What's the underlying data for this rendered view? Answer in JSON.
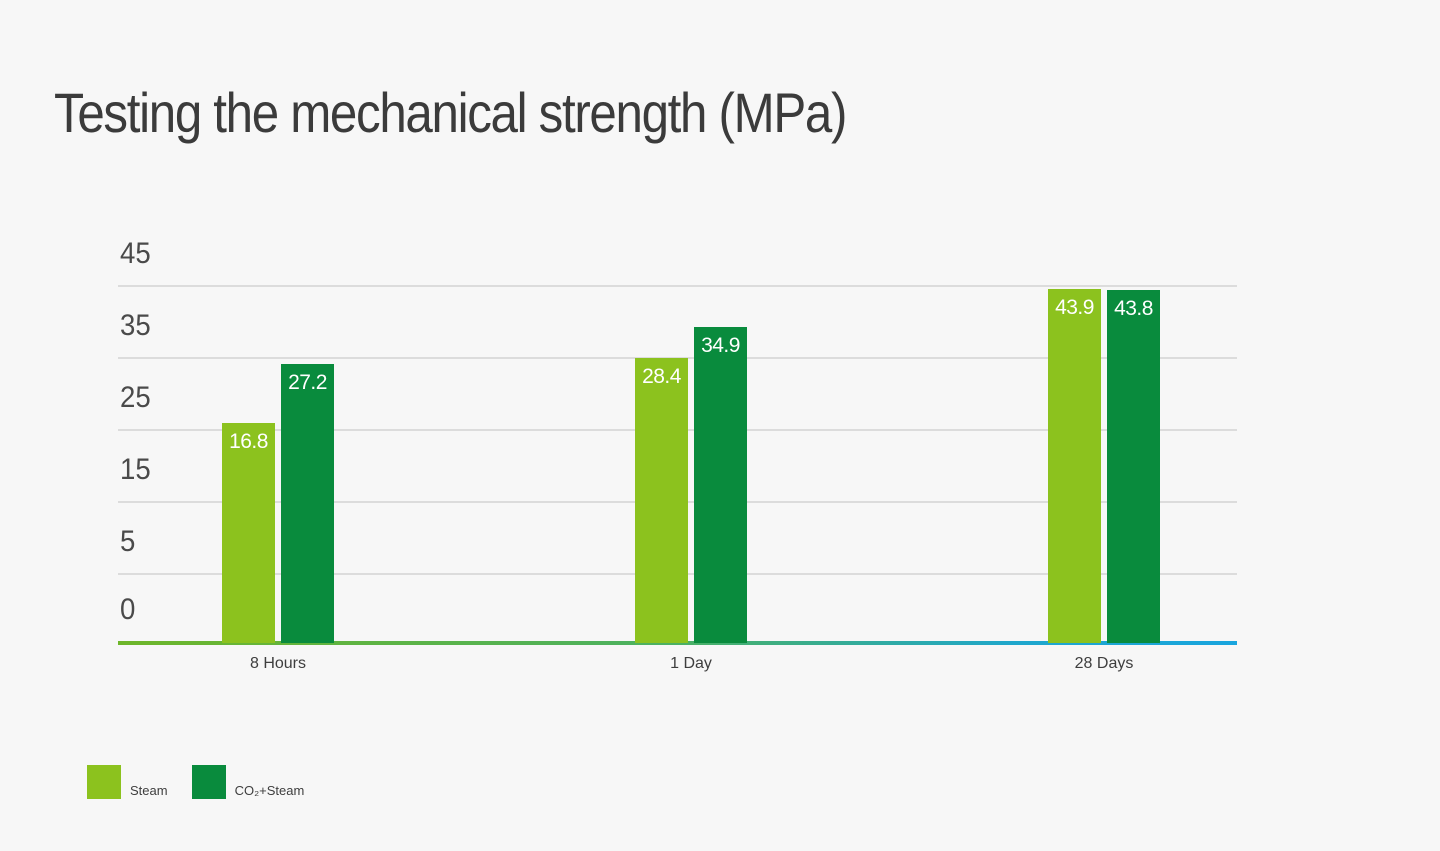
{
  "page": {
    "title": "Testing the mechanical strength (MPa)"
  },
  "chart_data": {
    "type": "bar",
    "title": "Testing the mechanical strength (MPa)",
    "categories": [
      "8 Hours",
      "1 Day",
      "28 Days"
    ],
    "series": [
      {
        "name": "Steam",
        "color": "#8CC21E",
        "values": [
          16.8,
          28.4,
          43.9
        ]
      },
      {
        "name": "CO₂+Steam",
        "color": "#098B3D",
        "values": [
          27.2,
          34.9,
          43.8
        ]
      }
    ],
    "value_labels": [
      [
        "16.8",
        "28.4",
        "43.9"
      ],
      [
        "27.2",
        "34.9",
        "43.8"
      ]
    ],
    "yticks": [
      "45",
      "35",
      "25",
      "15",
      "5",
      "0"
    ],
    "ylim": [
      0,
      45
    ],
    "xlabel": "",
    "ylabel": "",
    "grid": true,
    "legend_position": "bottom-left",
    "value_label_style": "white, inside top of bar",
    "axis_line_gradient": [
      "#6EB62A",
      "#4BB163",
      "#1FA7CC",
      "#19A5DE"
    ],
    "colors": {
      "background": "#F7F7F7",
      "steam": "#8CC21E",
      "co2_steam": "#098B3D",
      "gridline": "#DCDCDC",
      "title_text": "#3B3B3B",
      "tick_text": "#4A4A4A",
      "bar_label_text": "#FFFFFF"
    }
  }
}
